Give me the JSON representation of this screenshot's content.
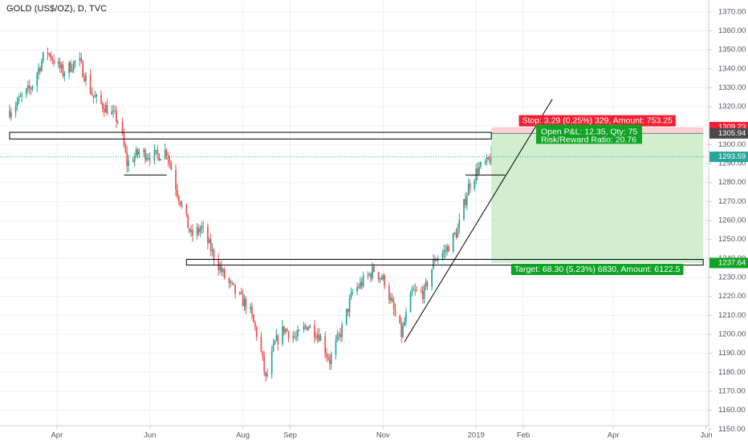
{
  "title": "GOLD (US$/OZ), D, TVC",
  "colors": {
    "up": "#26a69a",
    "down": "#ef5350",
    "grid": "#eef0f3",
    "axis_text": "#50535e",
    "axis_line": "#c8cbd3",
    "target_fill": "#c9ebc7",
    "stop_fill": "#f8c9cc",
    "target_label_bg": "#10a325",
    "stop_label_bg": "#f01f31",
    "last_price_bg": "#26a69a",
    "last_price_line": "#26a69a",
    "dark_label_bg": "#4a4a4a"
  },
  "chart_data": {
    "type": "candlestick",
    "title": "GOLD (US$/OZ), D, TVC",
    "x_axis": {
      "type": "date",
      "ticks": [
        "2018-04-01",
        "2018-06-01",
        "2018-08-01",
        "2018-09-01",
        "2018-11-01",
        "2019-01-01",
        "2019-02-01",
        "2019-04-01",
        "2019-06-01"
      ],
      "tick_labels": [
        "Apr",
        "Jun",
        "Aug",
        "Sep",
        "Nov",
        "2019",
        "Feb",
        "Apr",
        "Jun"
      ],
      "range": [
        "2018-03-01",
        "2019-06-01"
      ]
    },
    "y_axis": {
      "ticks": [
        1150,
        1160,
        1170,
        1180,
        1190,
        1200,
        1210,
        1220,
        1230,
        1240,
        1250,
        1260,
        1270,
        1280,
        1290,
        1300,
        1310,
        1320,
        1330,
        1340,
        1350,
        1360,
        1370
      ],
      "tick_labels": [
        "1150.00",
        "1160.00",
        "1170.00",
        "1180.00",
        "1190.00",
        "1200.00",
        "1210.00",
        "1220.00",
        "1230.00",
        "1240.00",
        "1250.00",
        "1260.00",
        "1270.00",
        "1280.00",
        "1290.00",
        "1300.00",
        "1310.00",
        "1320.00",
        "1330.00",
        "1340.00",
        "1350.00",
        "1360.00",
        "1370.00"
      ],
      "range": [
        1148,
        1375
      ]
    },
    "grid": true,
    "close_path": [
      [
        "2018-03-01",
        1318
      ],
      [
        "2018-03-15",
        1330
      ],
      [
        "2018-03-25",
        1350
      ],
      [
        "2018-04-05",
        1338
      ],
      [
        "2018-04-15",
        1345
      ],
      [
        "2018-04-25",
        1325
      ],
      [
        "2018-05-05",
        1318
      ],
      [
        "2018-05-12",
        1312
      ],
      [
        "2018-05-17",
        1290
      ],
      [
        "2018-05-25",
        1296
      ],
      [
        "2018-06-05",
        1294
      ],
      [
        "2018-06-12",
        1297
      ],
      [
        "2018-06-18",
        1278
      ],
      [
        "2018-06-28",
        1252
      ],
      [
        "2018-07-05",
        1256
      ],
      [
        "2018-07-12",
        1243
      ],
      [
        "2018-07-20",
        1230
      ],
      [
        "2018-07-27",
        1222
      ],
      [
        "2018-08-05",
        1214
      ],
      [
        "2018-08-12",
        1195
      ],
      [
        "2018-08-16",
        1176
      ],
      [
        "2018-08-22",
        1195
      ],
      [
        "2018-08-28",
        1203
      ],
      [
        "2018-09-05",
        1198
      ],
      [
        "2018-09-12",
        1205
      ],
      [
        "2018-09-20",
        1200
      ],
      [
        "2018-09-27",
        1186
      ],
      [
        "2018-10-05",
        1203
      ],
      [
        "2018-10-12",
        1222
      ],
      [
        "2018-10-19",
        1228
      ],
      [
        "2018-10-26",
        1234
      ],
      [
        "2018-11-02",
        1228
      ],
      [
        "2018-11-08",
        1212
      ],
      [
        "2018-11-13",
        1200
      ],
      [
        "2018-11-20",
        1222
      ],
      [
        "2018-11-28",
        1222
      ],
      [
        "2018-12-05",
        1240
      ],
      [
        "2018-12-12",
        1244
      ],
      [
        "2018-12-20",
        1255
      ],
      [
        "2018-12-27",
        1278
      ],
      [
        "2019-01-02",
        1287
      ],
      [
        "2019-01-08",
        1290
      ],
      [
        "2019-01-11",
        1294
      ]
    ],
    "last_price": 1293.59,
    "price_labels": [
      "1309.23",
      "1305.94",
      "1293.59",
      "1237.64"
    ],
    "long_position": {
      "entry": 1305.94,
      "stop": 1309.23,
      "target": 1237.64,
      "start": "2019-01-11",
      "end": "2019-05-30",
      "stop_label": "Stop: 3.29 (0.25%) 329, Amount: 753.25",
      "target_label": "Target: 68.30 (5.23%) 6830, Amount: 6122.5",
      "pnl_label": "Open P&L: 12.35, Qty: 75",
      "rr_label": "Risk/Reward Ratio: 20.76"
    },
    "rectangles": [
      {
        "from": "2018-03-01",
        "to": "2019-01-11",
        "low": 1303,
        "high": 1306.5
      },
      {
        "from": "2018-06-25",
        "to": "2019-05-30",
        "low": 1236.5,
        "high": 1239.5
      }
    ],
    "trend_line": {
      "from": [
        "2018-11-15",
        1196
      ],
      "to": [
        "2019-02-20",
        1324
      ]
    },
    "support_lines": [
      {
        "from": "2018-05-15",
        "to": "2018-06-12",
        "price": 1284
      },
      {
        "from": "2018-12-25",
        "to": "2019-01-20",
        "price": 1284
      }
    ]
  }
}
